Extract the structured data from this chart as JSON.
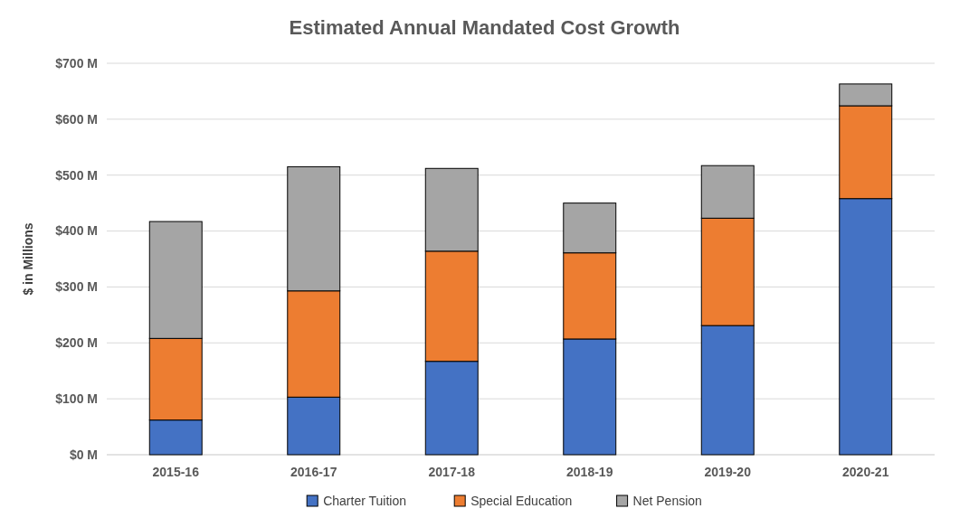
{
  "chart_data": {
    "type": "bar",
    "title": "Estimated Annual Mandated Cost Growth",
    "ylabel": "$ in Millions",
    "categories": [
      "2015-16",
      "2016-17",
      "2017-18",
      "2018-19",
      "2019-20",
      "2020-21"
    ],
    "stacked": true,
    "series": [
      {
        "name": "Charter Tuition",
        "color": "#4472c4",
        "values": [
          62,
          103,
          167,
          207,
          231,
          458
        ]
      },
      {
        "name": "Special Education",
        "color": "#ed7d31",
        "values": [
          146,
          190,
          197,
          154,
          192,
          166
        ]
      },
      {
        "name": "Net Pension",
        "color": "#a5a5a5",
        "values": [
          209,
          222,
          148,
          89,
          94,
          39
        ]
      }
    ],
    "ylim": [
      0,
      700
    ],
    "yticks": [
      {
        "value": 0,
        "label": "$0 M"
      },
      {
        "value": 100,
        "label": "$100 M"
      },
      {
        "value": 200,
        "label": "$200 M"
      },
      {
        "value": 300,
        "label": "$300 M"
      },
      {
        "value": 400,
        "label": "$400 M"
      },
      {
        "value": 500,
        "label": "$500 M"
      },
      {
        "value": 600,
        "label": "$600 M"
      },
      {
        "value": 700,
        "label": "$700 M"
      }
    ],
    "grid": "y",
    "legend": "bottom"
  }
}
